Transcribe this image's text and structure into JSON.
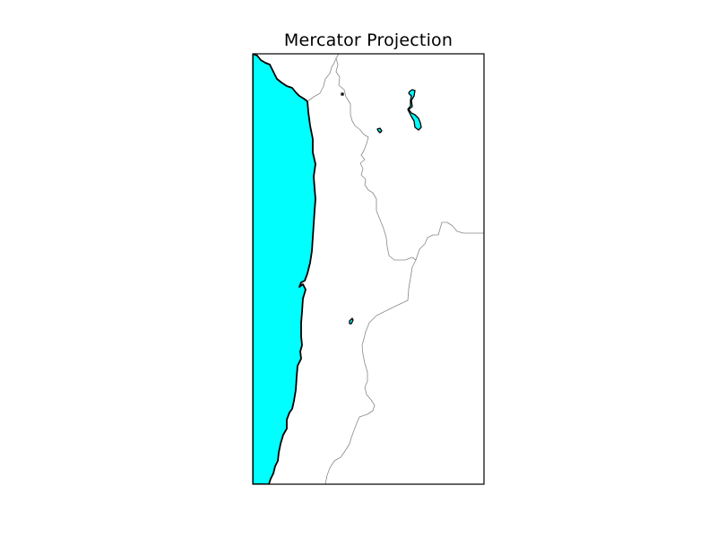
{
  "map": {
    "title": "Mercator Projection",
    "colors": {
      "water": "#00ffff",
      "land": "#ffffff",
      "coastline": "#000000",
      "borders": "#888888",
      "frame": "#000000"
    },
    "features": [
      "ocean",
      "coastline",
      "country-borders",
      "lakes"
    ]
  }
}
